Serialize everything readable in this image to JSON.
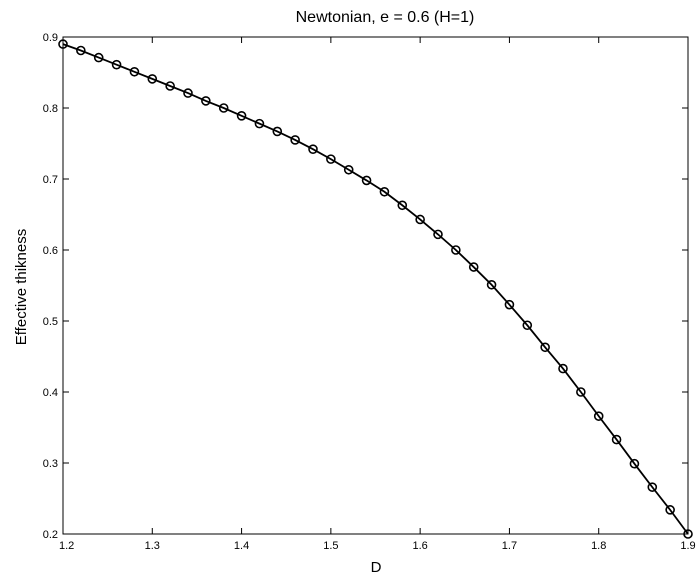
{
  "chart_data": {
    "type": "line",
    "title": "Newtonian, e = 0.6 (H=1)",
    "xlabel": "D",
    "ylabel": "Effective thikness",
    "xlim": [
      1.2,
      1.9
    ],
    "ylim": [
      0.2,
      0.9
    ],
    "xticks": [
      "1.2",
      "1.3",
      "1.4",
      "1.5",
      "1.6",
      "1.7",
      "1.8",
      "1.9"
    ],
    "yticks": [
      "0.2",
      "0.3",
      "0.4",
      "0.5",
      "0.6",
      "0.7",
      "0.8",
      "0.9"
    ],
    "grid": false,
    "marker": "circle",
    "line_color": "#000000",
    "series": [
      {
        "x": [
          1.2,
          1.22,
          1.24,
          1.26,
          1.28,
          1.3,
          1.32,
          1.34,
          1.36,
          1.38,
          1.4,
          1.42,
          1.44,
          1.46,
          1.48,
          1.5,
          1.52,
          1.54,
          1.56,
          1.58,
          1.6,
          1.62,
          1.64,
          1.66,
          1.68,
          1.7,
          1.72,
          1.74,
          1.76,
          1.78,
          1.8,
          1.82,
          1.84,
          1.86,
          1.88,
          1.9
        ],
        "values": [
          0.89,
          0.881,
          0.871,
          0.861,
          0.851,
          0.841,
          0.831,
          0.821,
          0.81,
          0.8,
          0.789,
          0.778,
          0.767,
          0.755,
          0.742,
          0.728,
          0.713,
          0.698,
          0.682,
          0.663,
          0.643,
          0.622,
          0.6,
          0.576,
          0.551,
          0.523,
          0.494,
          0.463,
          0.433,
          0.4,
          0.366,
          0.333,
          0.299,
          0.266,
          0.234,
          0.2
        ]
      }
    ]
  }
}
